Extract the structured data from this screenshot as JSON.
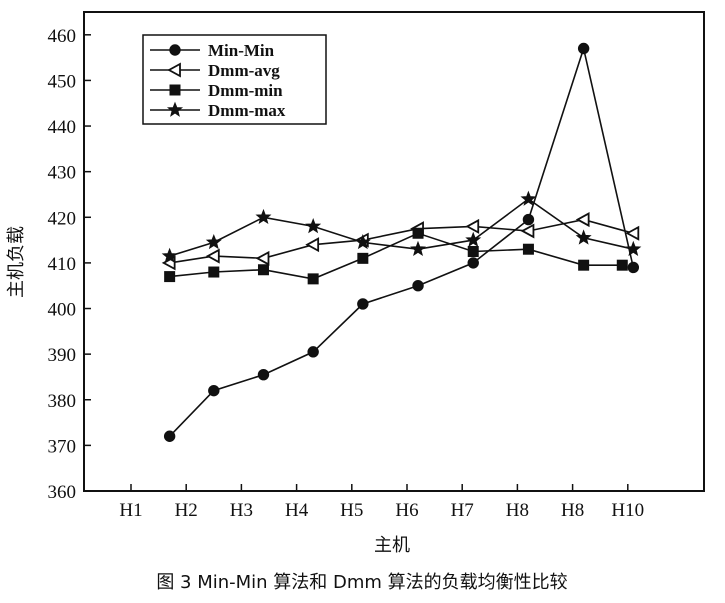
{
  "chart_data": {
    "type": "line",
    "categories": [
      "H1",
      "H2",
      "H3",
      "H4",
      "H5",
      "H6",
      "H7",
      "H8",
      "H8",
      "H10"
    ],
    "xlabel": "主机",
    "ylabel": "主机负载",
    "ylim": [
      360,
      465
    ],
    "yticks": [
      360,
      370,
      380,
      390,
      400,
      410,
      420,
      430,
      440,
      450,
      460
    ],
    "grid": false,
    "legend_position": "top-left",
    "caption": "图 3  Min-Min 算法和 Dmm 算法的负载均衡性比较",
    "series": [
      {
        "name": "Min-Min",
        "marker": "circle",
        "x": [
          0.7,
          1.5,
          2.4,
          3.3,
          4.2,
          5.2,
          6.2,
          7.2,
          8.2,
          9.1
        ],
        "values": [
          372,
          382,
          385.5,
          390.5,
          401,
          405,
          410,
          419.5,
          457,
          409
        ]
      },
      {
        "name": "Dmm-avg",
        "marker": "triangle",
        "x": [
          0.7,
          1.5,
          2.4,
          3.3,
          4.2,
          5.2,
          6.2,
          7.2,
          8.2,
          9.1
        ],
        "values": [
          410,
          411.5,
          411,
          414,
          415,
          417.5,
          418,
          417,
          419.5,
          416.5
        ]
      },
      {
        "name": "Dmm-min",
        "marker": "square",
        "x": [
          0.7,
          1.5,
          2.4,
          3.3,
          4.2,
          5.2,
          6.2,
          7.2,
          8.2,
          8.9
        ],
        "values": [
          407,
          408,
          408.5,
          406.5,
          411,
          416.5,
          412.5,
          413,
          409.5,
          409.5
        ]
      },
      {
        "name": "Dmm-max",
        "marker": "star",
        "x": [
          0.7,
          1.5,
          2.4,
          3.3,
          4.2,
          5.2,
          6.2,
          7.2,
          8.2,
          9.1
        ],
        "values": [
          411.5,
          414.5,
          420,
          418,
          414.5,
          413,
          415,
          424,
          415.5,
          413
        ]
      }
    ]
  }
}
